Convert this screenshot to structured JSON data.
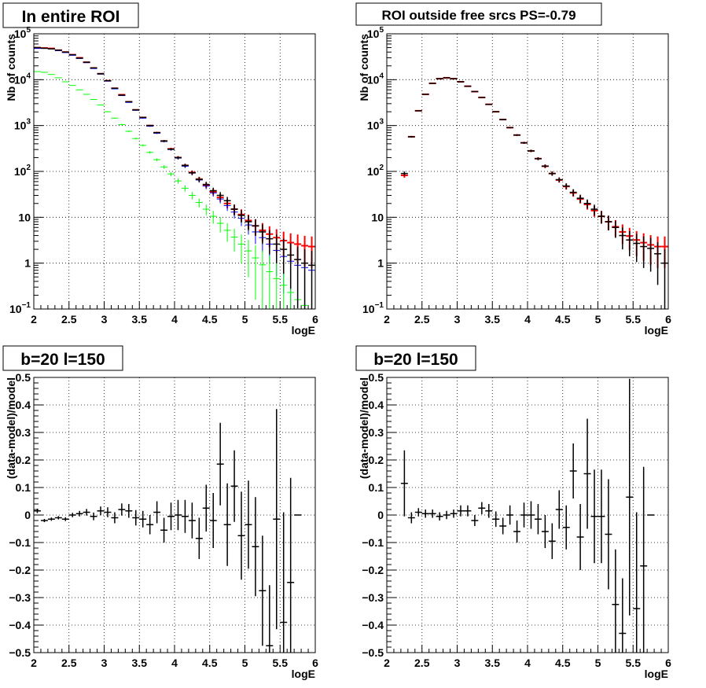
{
  "chart_data": [
    {
      "type": "scatter",
      "title": "In entire ROI",
      "xlabel": "logE",
      "ylabel": "Nb of counts",
      "xlim": [
        2,
        6
      ],
      "ylim": [
        0.1,
        100000
      ],
      "yscale": "log",
      "grid": true,
      "x_ticks": [
        "2",
        "2.5",
        "3",
        "3.5",
        "4",
        "4.5",
        "5",
        "5.5",
        "6"
      ],
      "y_ticks": [
        {
          "base": "10",
          "exp": "−1",
          "value": 0.1
        },
        {
          "base": "1",
          "exp": "",
          "value": 1
        },
        {
          "base": "10",
          "exp": "",
          "value": 10
        },
        {
          "base": "10",
          "exp": "2",
          "value": 100
        },
        {
          "base": "10",
          "exp": "3",
          "value": 1000
        },
        {
          "base": "10",
          "exp": "4",
          "value": 10000
        },
        {
          "base": "10",
          "exp": "5",
          "value": 100000
        }
      ],
      "x": [
        2.05,
        2.15,
        2.25,
        2.35,
        2.45,
        2.55,
        2.65,
        2.75,
        2.85,
        2.95,
        3.05,
        3.15,
        3.25,
        3.35,
        3.45,
        3.55,
        3.65,
        3.75,
        3.85,
        3.95,
        4.05,
        4.15,
        4.25,
        4.35,
        4.45,
        4.55,
        4.65,
        4.75,
        4.85,
        4.95,
        5.05,
        5.15,
        5.25,
        5.35,
        5.45,
        5.55,
        5.65,
        5.75,
        5.85,
        5.95
      ],
      "series": [
        {
          "color": "#ff0000",
          "lw": 2,
          "values": [
            50000,
            49000,
            48000,
            44000,
            40000,
            35000,
            30000,
            24000,
            18000,
            13500,
            9500,
            6500,
            4700,
            3300,
            2200,
            1500,
            1000,
            700,
            460,
            310,
            200,
            135,
            95,
            68,
            50,
            36,
            27,
            20,
            15,
            11.5,
            8.5,
            6.5,
            5.2,
            4.3,
            3.6,
            3.1,
            2.8,
            2.6,
            2.4,
            2.3
          ]
        },
        {
          "color": "#0000ff",
          "lw": 1,
          "values": [
            48000,
            48000,
            47000,
            43000,
            39000,
            34000,
            29000,
            23500,
            17500,
            13200,
            9300,
            6300,
            4500,
            3200,
            2150,
            1450,
            970,
            680,
            450,
            300,
            195,
            130,
            92,
            65,
            48,
            34,
            25,
            18,
            13,
            9.5,
            6.8,
            4.8,
            3.6,
            2.6,
            1.9,
            1.4,
            1.1,
            0.9,
            0.8,
            0.7
          ]
        },
        {
          "color": "#00ff00",
          "lw": 1,
          "values": [
            15000,
            14500,
            13000,
            11000,
            9000,
            7500,
            6000,
            4800,
            3700,
            2800,
            2000,
            1450,
            1050,
            750,
            520,
            370,
            260,
            180,
            125,
            88,
            62,
            43,
            30,
            21,
            15,
            10.5,
            7.4,
            5.2,
            3.7,
            2.6,
            1.85,
            1.3,
            0.92,
            0.65,
            0.46,
            0.33,
            0.23,
            0.16,
            0.12,
            0.1
          ]
        },
        {
          "color": "#000000",
          "lw": 1.5,
          "values": [
            50000,
            48500,
            47000,
            44000,
            40000,
            35000,
            29500,
            24000,
            18000,
            13500,
            9500,
            6500,
            4600,
            3300,
            2200,
            1500,
            1000,
            700,
            460,
            305,
            200,
            135,
            93,
            67,
            52,
            38,
            30,
            23,
            15,
            11,
            8,
            6.5,
            4.8,
            3.4,
            2.6,
            2.0,
            1.5,
            1.2,
            1.0,
            0.9
          ]
        }
      ]
    },
    {
      "type": "scatter",
      "title": "ROI outside free srcs PS=-0.79",
      "xlabel": "logE",
      "ylabel": "Nb of counts",
      "xlim": [
        2,
        6
      ],
      "ylim": [
        0.1,
        100000
      ],
      "yscale": "log",
      "grid": true,
      "x_ticks": [
        "2",
        "2.5",
        "3",
        "3.5",
        "4",
        "4.5",
        "5",
        "5.5",
        "6"
      ],
      "y_ticks": [
        {
          "base": "10",
          "exp": "−1",
          "value": 0.1
        },
        {
          "base": "1",
          "exp": "",
          "value": 1
        },
        {
          "base": "10",
          "exp": "",
          "value": 10
        },
        {
          "base": "10",
          "exp": "2",
          "value": 100
        },
        {
          "base": "10",
          "exp": "3",
          "value": 1000
        },
        {
          "base": "10",
          "exp": "4",
          "value": 10000
        },
        {
          "base": "10",
          "exp": "5",
          "value": 100000
        }
      ],
      "x": [
        2.25,
        2.35,
        2.45,
        2.55,
        2.65,
        2.75,
        2.85,
        2.95,
        3.05,
        3.15,
        3.25,
        3.35,
        3.45,
        3.55,
        3.65,
        3.75,
        3.85,
        3.95,
        4.05,
        4.15,
        4.25,
        4.35,
        4.45,
        4.55,
        4.65,
        4.75,
        4.85,
        4.95,
        5.05,
        5.15,
        5.25,
        5.35,
        5.45,
        5.55,
        5.65,
        5.75,
        5.85,
        5.95
      ],
      "series": [
        {
          "color": "#ff0000",
          "lw": 2,
          "values": [
            82,
            570,
            2100,
            4800,
            8300,
            10500,
            11000,
            10500,
            9000,
            7200,
            5500,
            4100,
            2900,
            2000,
            1350,
            900,
            620,
            420,
            280,
            190,
            130,
            90,
            65,
            47,
            34,
            25,
            19,
            14,
            10.5,
            8,
            6.2,
            4.8,
            3.9,
            3.2,
            2.8,
            2.5,
            2.3,
            2.3
          ]
        },
        {
          "color": "#000000",
          "lw": 1.5,
          "values": [
            90,
            570,
            2100,
            4800,
            8300,
            10500,
            11000,
            10500,
            9000,
            7200,
            5500,
            4100,
            2900,
            2000,
            1350,
            900,
            620,
            420,
            280,
            190,
            130,
            90,
            66,
            48,
            35,
            26,
            20,
            15,
            10.5,
            8,
            6,
            4,
            3.2,
            2.7,
            2.3,
            2.1,
            1.6,
            1.0
          ]
        }
      ]
    },
    {
      "type": "scatter",
      "title": "b=20 l=150",
      "xlabel": "logE",
      "ylabel": "(data-model)/model",
      "xlim": [
        2,
        6
      ],
      "ylim": [
        -0.5,
        0.5
      ],
      "grid": true,
      "x_ticks": [
        "2",
        "2.5",
        "3",
        "3.5",
        "4",
        "4.5",
        "5",
        "5.5",
        "6"
      ],
      "y_ticks": [
        "−0.5",
        "−0.4",
        "−0.3",
        "−0.2",
        "−0.1",
        "0",
        "0.1",
        "0.2",
        "0.3",
        "0.4",
        "0.5"
      ],
      "x": [
        2.05,
        2.15,
        2.25,
        2.35,
        2.45,
        2.55,
        2.65,
        2.75,
        2.85,
        2.95,
        3.05,
        3.15,
        3.25,
        3.35,
        3.45,
        3.55,
        3.65,
        3.75,
        3.85,
        3.95,
        4.05,
        4.15,
        4.25,
        4.35,
        4.45,
        4.55,
        4.65,
        4.75,
        4.85,
        4.95,
        5.05,
        5.15,
        5.25,
        5.35,
        5.45,
        5.55,
        5.65,
        5.75
      ],
      "series": [
        {
          "color": "#000000",
          "values": [
            0.015,
            -0.02,
            -0.015,
            -0.01,
            -0.015,
            0,
            0.005,
            0.01,
            -0.005,
            0.015,
            0.01,
            -0.01,
            0.02,
            0.015,
            -0.01,
            -0.015,
            -0.035,
            0.01,
            -0.055,
            -0.005,
            0,
            -0.005,
            -0.02,
            -0.085,
            0.025,
            -0.02,
            0.185,
            -0.035,
            0.105,
            -0.075,
            -0.035,
            -0.115,
            -0.275,
            -0.475,
            -0.015,
            -0.39,
            -0.245,
            0.0
          ],
          "errors": [
            0.008,
            0.006,
            0.006,
            0.006,
            0.007,
            0.008,
            0.01,
            0.012,
            0.014,
            0.016,
            0.018,
            0.02,
            0.022,
            0.025,
            0.028,
            0.03,
            0.035,
            0.04,
            0.045,
            0.05,
            0.055,
            0.06,
            0.065,
            0.075,
            0.085,
            0.1,
            0.15,
            0.15,
            0.13,
            0.16,
            0.16,
            0.18,
            0.2,
            0.22,
            0.4,
            0.4,
            0.38,
            0.0
          ]
        }
      ]
    },
    {
      "type": "scatter",
      "title": "b=20 l=150",
      "xlabel": "logE",
      "ylabel": "(data-model)/model",
      "xlim": [
        2,
        6
      ],
      "ylim": [
        -0.5,
        0.5
      ],
      "grid": true,
      "x_ticks": [
        "2",
        "2.5",
        "3",
        "3.5",
        "4",
        "4.5",
        "5",
        "5.5",
        "6"
      ],
      "y_ticks": [
        "−0.5",
        "−0.4",
        "−0.3",
        "−0.2",
        "−0.1",
        "0",
        "0.1",
        "0.2",
        "0.3",
        "0.4",
        "0.5"
      ],
      "x": [
        2.25,
        2.35,
        2.45,
        2.55,
        2.65,
        2.75,
        2.85,
        2.95,
        3.05,
        3.15,
        3.25,
        3.35,
        3.45,
        3.55,
        3.65,
        3.75,
        3.85,
        3.95,
        4.05,
        4.15,
        4.25,
        4.35,
        4.45,
        4.55,
        4.65,
        4.75,
        4.85,
        4.95,
        5.05,
        5.15,
        5.25,
        5.35,
        5.45,
        5.55,
        5.65,
        5.75
      ],
      "series": [
        {
          "color": "#000000",
          "values": [
            0.115,
            -0.01,
            0.01,
            0.005,
            0.005,
            -0.005,
            0,
            0.005,
            0.015,
            0.015,
            -0.02,
            0.025,
            0.015,
            -0.015,
            -0.04,
            0,
            -0.06,
            0,
            0,
            -0.015,
            -0.06,
            -0.095,
            0.02,
            -0.045,
            0.16,
            -0.08,
            0.15,
            -0.005,
            -0.005,
            -0.07,
            -0.325,
            -0.43,
            0.065,
            -0.34,
            -0.185,
            0
          ],
          "errors": [
            0.12,
            0.02,
            0.015,
            0.015,
            0.015,
            0.015,
            0.015,
            0.015,
            0.02,
            0.02,
            0.02,
            0.022,
            0.025,
            0.028,
            0.03,
            0.035,
            0.04,
            0.045,
            0.05,
            0.055,
            0.06,
            0.065,
            0.07,
            0.08,
            0.1,
            0.12,
            0.2,
            0.17,
            0.17,
            0.2,
            0.2,
            0.2,
            0.43,
            0.35,
            0.36,
            0.0
          ]
        }
      ]
    }
  ]
}
